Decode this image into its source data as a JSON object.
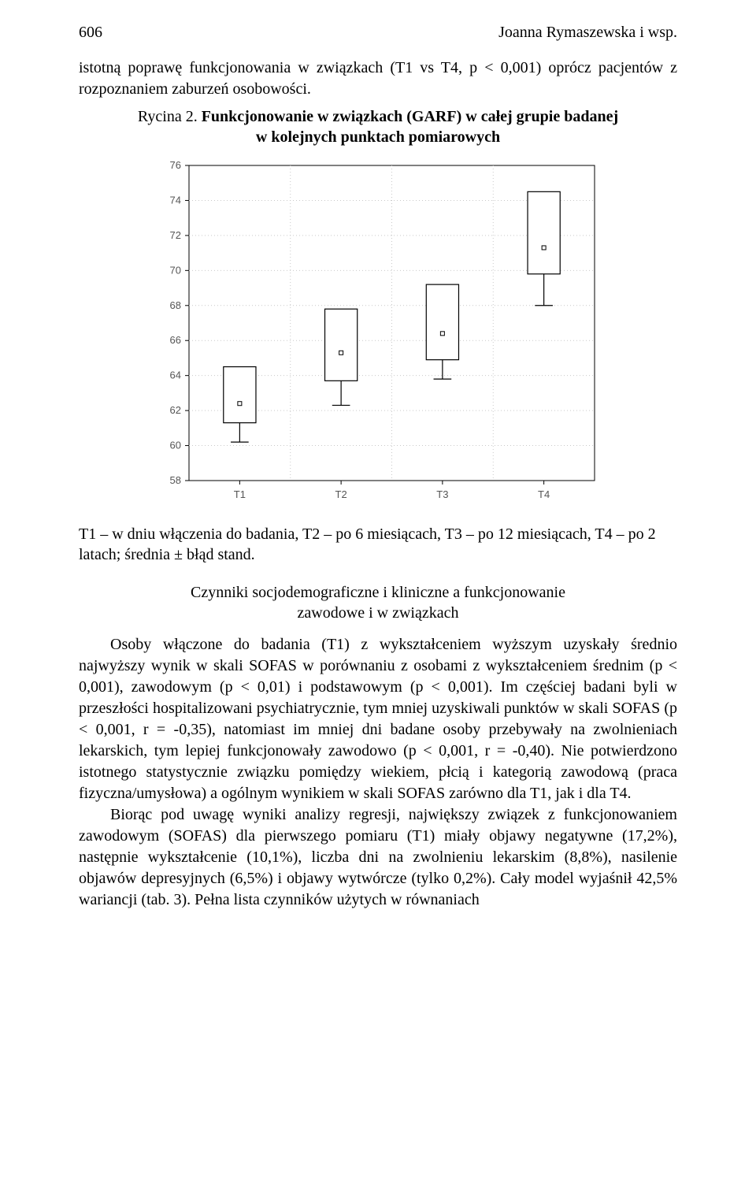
{
  "header": {
    "page_number": "606",
    "running_title": "Joanna Rymaszewska i wsp."
  },
  "intro_paragraph": "istotną poprawę funkcjonowania w związkach (T1 vs T4, p < 0,001) oprócz pacjentów z rozpoznaniem zaburzeń osobowości.",
  "figure": {
    "caption": "Rycina 2. Funkcjonowanie w związkach (GARF) w całej grupie badanej w kolejnych punktach pomiarowych",
    "type": "boxplot",
    "categories": [
      "T1",
      "T2",
      "T3",
      "T4"
    ],
    "boxes": [
      {
        "whisker_low": 60.2,
        "q1": 61.3,
        "median": 62.4,
        "q3": 64.5,
        "whisker_high": 64.5
      },
      {
        "whisker_low": 62.3,
        "q1": 63.7,
        "median": 65.3,
        "q3": 67.8,
        "whisker_high": 67.8
      },
      {
        "whisker_low": 63.8,
        "q1": 64.9,
        "median": 66.4,
        "q3": 69.2,
        "whisker_high": 69.2
      },
      {
        "whisker_low": 68.0,
        "q1": 69.8,
        "median": 71.3,
        "q3": 74.5,
        "whisker_high": 74.5
      }
    ],
    "ylim": [
      58,
      76
    ],
    "ytick_step": 2,
    "yticks": [
      58,
      60,
      62,
      64,
      66,
      68,
      70,
      72,
      74,
      76
    ],
    "axis_color": "#000000",
    "grid_color": "#c9c9c9",
    "grid_style": "dotted",
    "box_fill": "#ffffff",
    "box_stroke": "#000000",
    "box_width_ratio": 0.32,
    "tick_fontsize": 13,
    "label_color": "#555555",
    "background_color": "#ffffff",
    "plot_area_border": "#000000",
    "marker": {
      "shape": "square",
      "size": 5,
      "stroke": "#000000",
      "fill": "#ffffff"
    }
  },
  "legend_line": "T1 – w dniu włączenia do badania, T2 – po 6 miesiącach, T3 – po 12 miesiącach, T4 – po 2 latach; średnia ± błąd stand.",
  "section_title": "Czynniki socjodemograficzne i kliniczne a funkcjonowanie zawodowe i w związkach",
  "paragraphs": {
    "p1": "Osoby włączone do badania (T1) z wykształceniem wyższym uzyskały średnio najwyższy wynik w skali SOFAS w porównaniu z osobami z wykształceniem średnim (p < 0,001), zawodowym (p < 0,01) i podstawowym (p < 0,001). Im częściej badani byli w przeszłości hospitalizowani psychiatrycznie, tym mniej uzyskiwali punktów w skali SOFAS (p < 0,001, r = -0,35), natomiast im mniej dni badane osoby przebywały na zwolnieniach lekarskich, tym lepiej funkcjonowały zawodowo (p < 0,001, r = -0,40). Nie potwierdzono istotnego statystycznie związku pomiędzy wiekiem, płcią i kategorią zawodową (praca fizyczna/umysłowa) a ogólnym wynikiem w skali SOFAS zarówno dla T1, jak i dla T4.",
    "p2": "Biorąc pod uwagę wyniki analizy regresji, największy związek z funkcjonowaniem zawodowym (SOFAS) dla pierwszego pomiaru (T1) miały objawy negatywne (17,2%), następnie wykształcenie (10,1%), liczba dni na zwolnieniu lekarskim (8,8%), nasilenie objawów depresyjnych (6,5%) i objawy wytwórcze (tylko 0,2%). Cały model wyjaśnił 42,5% wariancji (tab. 3). Pełna lista czynników użytych w równaniach"
  }
}
